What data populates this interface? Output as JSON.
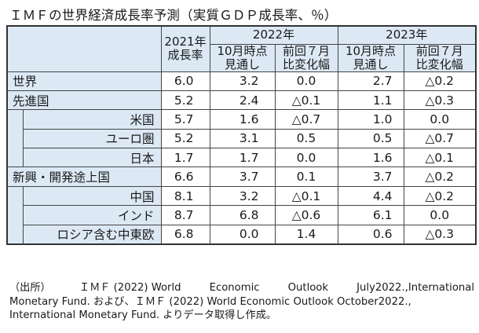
{
  "title": "ＩＭＦの世界経済成長率予測（実質ＧＤＰ成長率、％）",
  "header": {
    "col_2021": "2021年\n成長率",
    "year_2022": "2022年",
    "year_2023": "2023年",
    "sub_2022_oct": "10月時点\n見通し",
    "sub_2022_jul": "前回７月\n比変化幅",
    "sub_2023_oct": "10月時点\n見通し",
    "sub_2023_jul": "前回７月\n比変化幅"
  },
  "rows": [
    {
      "label": "世界",
      "level": 0,
      "values": [
        "6.0",
        "3.2",
        "0.0",
        "2.7",
        "△0.2"
      ]
    },
    {
      "label": "先進国",
      "level": 0,
      "values": [
        "5.2",
        "2.4",
        "△0.1",
        "1.1",
        "△0.3"
      ]
    },
    {
      "label": "米国",
      "level": 1,
      "values": [
        "5.7",
        "1.6",
        "△0.7",
        "1.0",
        "0.0"
      ]
    },
    {
      "label": "ユーロ圏",
      "level": 1,
      "values": [
        "5.2",
        "3.1",
        "0.5",
        "0.5",
        "△0.7"
      ]
    },
    {
      "label": "日本",
      "level": 1,
      "values": [
        "1.7",
        "1.7",
        "0.0",
        "1.6",
        "△0.1"
      ]
    },
    {
      "label": "新興・開発途上国",
      "level": 0,
      "values": [
        "6.6",
        "3.7",
        "0.1",
        "3.7",
        "△0.2"
      ]
    },
    {
      "label": "中国",
      "level": 1,
      "values": [
        "8.1",
        "3.2",
        "△0.1",
        "4.4",
        "△0.2"
      ]
    },
    {
      "label": "インド",
      "level": 1,
      "values": [
        "8.7",
        "6.8",
        "△0.6",
        "6.1",
        "0.0"
      ]
    },
    {
      "label": "ロシア含む中東欧",
      "level": 1,
      "values": [
        "6.8",
        "0.0",
        "1.4",
        "0.6",
        "△0.3"
      ]
    }
  ],
  "note": {
    "line1_parts": [
      "（出所）",
      "ＩＭＦ (2022) World",
      "Economic",
      "Outlook",
      "July2022.,International"
    ],
    "line2": "Monetary Fund. および、ＩＭＦ (2022) World Economic Outlook October2022.,",
    "line3": "International Monetary Fund.  よりデータ取得し作成。"
  }
}
